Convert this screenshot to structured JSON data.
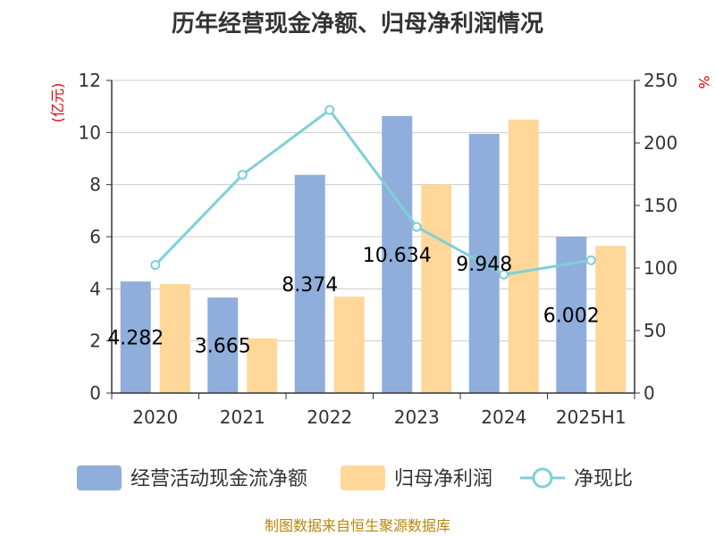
{
  "chart_data": {
    "type": "bar",
    "title": "历年经营现金净额、归母净利润情况",
    "categories": [
      "2020",
      "2021",
      "2022",
      "2023",
      "2024",
      "2025H1"
    ],
    "y_left": {
      "unit_label": "(亿元)",
      "ticks": [
        "0",
        "2",
        "4",
        "6",
        "8",
        "10",
        "12"
      ],
      "ylim": [
        0,
        12
      ]
    },
    "y_right": {
      "unit_label": "%",
      "ticks": [
        "0",
        "50",
        "100",
        "150",
        "200",
        "250"
      ],
      "ylim": [
        0,
        250
      ]
    },
    "grid": true,
    "legend_position": "bottom",
    "series": [
      {
        "name": "经营活动现金流净额",
        "type": "bar",
        "axis": "left",
        "color": "#8faedb",
        "values": [
          4.282,
          3.665,
          8.374,
          10.634,
          9.948,
          6.002
        ],
        "labels": [
          "4.282",
          "3.665",
          "8.374",
          "10.634",
          "9.948",
          "6.002"
        ]
      },
      {
        "name": "归母净利润",
        "type": "bar",
        "axis": "left",
        "color": "#ffd799",
        "values": [
          4.18,
          2.1,
          3.7,
          8.0,
          10.5,
          5.65
        ]
      },
      {
        "name": "净现比",
        "type": "line",
        "axis": "right",
        "color": "#7fd0d6",
        "values": [
          102.4,
          174.5,
          226.3,
          132.9,
          94.7,
          106.2
        ]
      }
    ]
  },
  "source_note": "制图数据来自恒生聚源数据库"
}
